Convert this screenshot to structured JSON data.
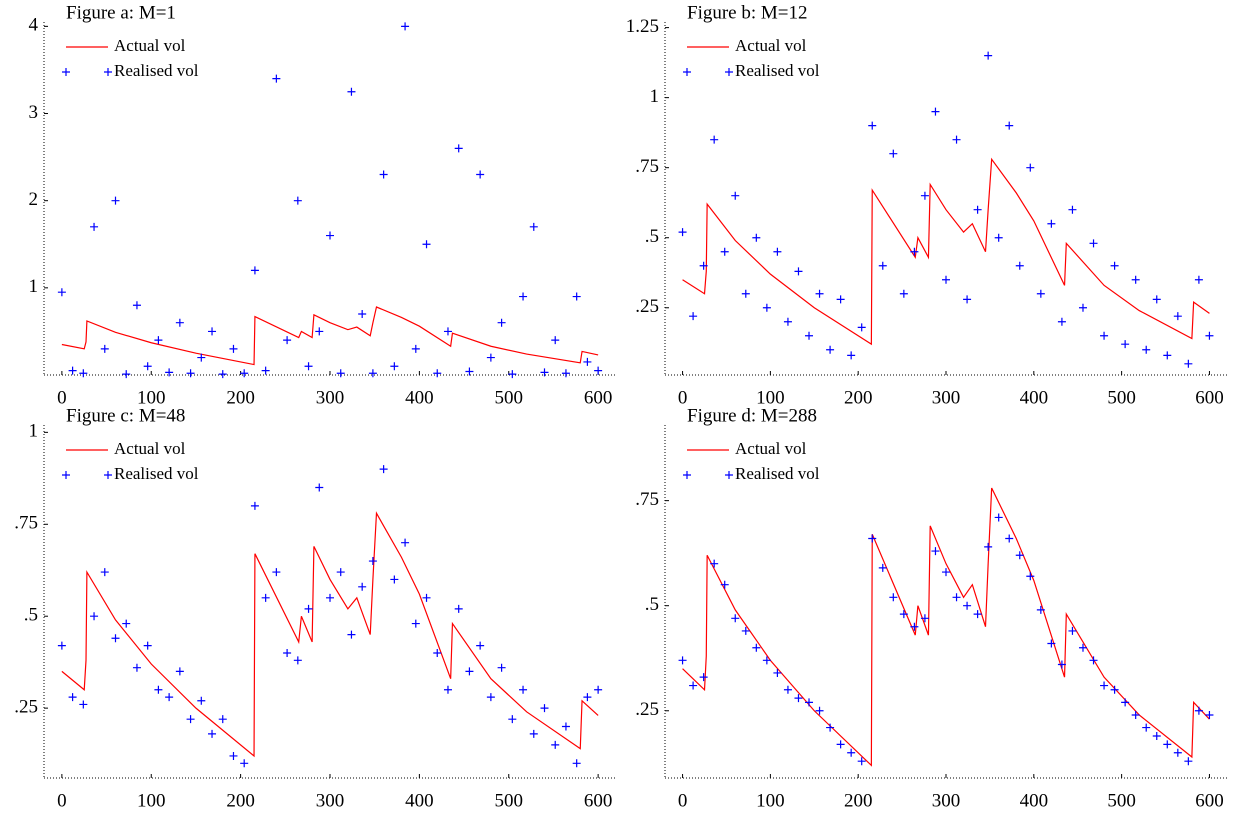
{
  "chart_data": [
    {
      "type": "scatter",
      "title": "Figure a: M=1",
      "xlim": [
        -20,
        620
      ],
      "ylim": [
        0,
        4.05
      ],
      "xticks": [
        0,
        100,
        200,
        300,
        400,
        500,
        600
      ],
      "yticks": [
        1,
        2,
        3,
        4
      ],
      "series": [
        {
          "name": "Actual vol",
          "color": "#ff0000",
          "style": "line",
          "x": [
            0,
            25,
            27,
            28,
            60,
            100,
            150,
            215,
            216,
            265,
            268,
            280,
            282,
            300,
            320,
            330,
            345,
            348,
            352,
            380,
            400,
            435,
            437,
            480,
            520,
            580,
            582,
            600
          ],
          "values": [
            0.35,
            0.3,
            0.38,
            0.62,
            0.49,
            0.37,
            0.25,
            0.12,
            0.67,
            0.43,
            0.5,
            0.43,
            0.69,
            0.6,
            0.52,
            0.55,
            0.45,
            0.6,
            0.78,
            0.66,
            0.56,
            0.33,
            0.48,
            0.33,
            0.24,
            0.14,
            0.27,
            0.23
          ]
        },
        {
          "name": "Realised vol",
          "color": "#0000ff",
          "style": "marker",
          "x": [
            0,
            12,
            24,
            36,
            48,
            60,
            72,
            84,
            96,
            108,
            120,
            132,
            144,
            156,
            168,
            180,
            192,
            204,
            216,
            228,
            240,
            252,
            264,
            276,
            288,
            300,
            312,
            324,
            336,
            348,
            360,
            372,
            384,
            396,
            408,
            420,
            432,
            444,
            456,
            468,
            480,
            492,
            504,
            516,
            528,
            540,
            552,
            564,
            576,
            588,
            600
          ],
          "values": [
            0.95,
            0.05,
            0.02,
            1.7,
            0.3,
            2.0,
            0.01,
            0.8,
            0.1,
            0.4,
            0.03,
            0.6,
            0.02,
            0.2,
            0.5,
            0.01,
            0.3,
            0.02,
            1.2,
            0.05,
            3.4,
            0.4,
            2.0,
            0.1,
            0.5,
            1.6,
            0.02,
            3.25,
            0.7,
            0.02,
            2.3,
            0.1,
            4.0,
            0.3,
            1.5,
            0.02,
            0.5,
            2.6,
            0.04,
            2.3,
            0.2,
            0.6,
            0.01,
            0.9,
            1.7,
            0.03,
            0.4,
            0.02,
            0.9,
            0.15,
            0.05
          ]
        }
      ]
    },
    {
      "type": "scatter",
      "title": "Figure b: M=12",
      "xlim": [
        -20,
        620
      ],
      "ylim": [
        0.01,
        1.27
      ],
      "xticks": [
        0,
        100,
        200,
        300,
        400,
        500,
        600
      ],
      "yticks": [
        {
          "value": 0.25,
          "label": ".25"
        },
        {
          "value": 0.5,
          "label": ".5"
        },
        {
          "value": 0.75,
          "label": ".75"
        },
        1,
        1.25
      ],
      "series": [
        {
          "name": "Actual vol",
          "color": "#ff0000",
          "style": "line",
          "x": [
            0,
            25,
            27,
            28,
            60,
            100,
            150,
            215,
            216,
            265,
            268,
            280,
            282,
            300,
            320,
            330,
            345,
            348,
            352,
            380,
            400,
            435,
            437,
            480,
            520,
            580,
            582,
            600
          ],
          "values": [
            0.35,
            0.3,
            0.38,
            0.62,
            0.49,
            0.37,
            0.25,
            0.12,
            0.67,
            0.43,
            0.5,
            0.43,
            0.69,
            0.6,
            0.52,
            0.55,
            0.45,
            0.6,
            0.78,
            0.66,
            0.56,
            0.33,
            0.48,
            0.33,
            0.24,
            0.14,
            0.27,
            0.23
          ]
        },
        {
          "name": "Realised vol",
          "color": "#0000ff",
          "style": "marker",
          "x": [
            0,
            12,
            24,
            36,
            48,
            60,
            72,
            84,
            96,
            108,
            120,
            132,
            144,
            156,
            168,
            180,
            192,
            204,
            216,
            228,
            240,
            252,
            264,
            276,
            288,
            300,
            312,
            324,
            336,
            348,
            360,
            372,
            384,
            396,
            408,
            420,
            432,
            444,
            456,
            468,
            480,
            492,
            504,
            516,
            528,
            540,
            552,
            564,
            576,
            588,
            600
          ],
          "values": [
            0.52,
            0.22,
            0.4,
            0.85,
            0.45,
            0.65,
            0.3,
            0.5,
            0.25,
            0.45,
            0.2,
            0.38,
            0.15,
            0.3,
            0.1,
            0.28,
            0.08,
            0.18,
            0.9,
            0.4,
            0.8,
            0.3,
            0.45,
            0.65,
            0.95,
            0.35,
            0.85,
            0.28,
            0.6,
            1.15,
            0.5,
            0.9,
            0.4,
            0.75,
            0.3,
            0.55,
            0.2,
            0.6,
            0.25,
            0.48,
            0.15,
            0.4,
            0.12,
            0.35,
            0.1,
            0.28,
            0.08,
            0.22,
            0.05,
            0.35,
            0.15
          ]
        }
      ]
    },
    {
      "type": "scatter",
      "title": "Figure c: M=48",
      "xlim": [
        -20,
        620
      ],
      "ylim": [
        0.06,
        1.02
      ],
      "xticks": [
        0,
        100,
        200,
        300,
        400,
        500,
        600
      ],
      "yticks": [
        {
          "value": 0.25,
          "label": ".25"
        },
        {
          "value": 0.5,
          "label": ".5"
        },
        {
          "value": 0.75,
          "label": ".75"
        },
        1
      ],
      "series": [
        {
          "name": "Actual vol",
          "color": "#ff0000",
          "style": "line",
          "x": [
            0,
            25,
            27,
            28,
            60,
            100,
            150,
            215,
            216,
            265,
            268,
            280,
            282,
            300,
            320,
            330,
            345,
            348,
            352,
            380,
            400,
            435,
            437,
            480,
            520,
            580,
            582,
            600
          ],
          "values": [
            0.35,
            0.3,
            0.38,
            0.62,
            0.49,
            0.37,
            0.25,
            0.12,
            0.67,
            0.43,
            0.5,
            0.43,
            0.69,
            0.6,
            0.52,
            0.55,
            0.45,
            0.6,
            0.78,
            0.66,
            0.56,
            0.33,
            0.48,
            0.33,
            0.24,
            0.14,
            0.27,
            0.23
          ]
        },
        {
          "name": "Realised vol",
          "color": "#0000ff",
          "style": "marker",
          "x": [
            0,
            12,
            24,
            36,
            48,
            60,
            72,
            84,
            96,
            108,
            120,
            132,
            144,
            156,
            168,
            180,
            192,
            204,
            216,
            228,
            240,
            252,
            264,
            276,
            288,
            300,
            312,
            324,
            336,
            348,
            360,
            372,
            384,
            396,
            408,
            420,
            432,
            444,
            456,
            468,
            480,
            492,
            504,
            516,
            528,
            540,
            552,
            564,
            576,
            588,
            600
          ],
          "values": [
            0.42,
            0.28,
            0.26,
            0.5,
            0.62,
            0.44,
            0.48,
            0.36,
            0.42,
            0.3,
            0.28,
            0.35,
            0.22,
            0.27,
            0.18,
            0.22,
            0.12,
            0.1,
            0.8,
            0.55,
            0.62,
            0.4,
            0.38,
            0.52,
            0.85,
            0.55,
            0.62,
            0.45,
            0.58,
            0.65,
            0.9,
            0.6,
            0.7,
            0.48,
            0.55,
            0.4,
            0.3,
            0.52,
            0.35,
            0.42,
            0.28,
            0.36,
            0.22,
            0.3,
            0.18,
            0.25,
            0.15,
            0.2,
            0.1,
            0.28,
            0.3
          ]
        }
      ]
    },
    {
      "type": "scatter",
      "title": "Figure d: M=288",
      "xlim": [
        -20,
        620
      ],
      "ylim": [
        0.09,
        0.93
      ],
      "xticks": [
        0,
        100,
        200,
        300,
        400,
        500,
        600
      ],
      "yticks": [
        {
          "value": 0.25,
          "label": ".25"
        },
        {
          "value": 0.5,
          "label": ".5"
        },
        {
          "value": 0.75,
          "label": ".75"
        }
      ],
      "series": [
        {
          "name": "Actual vol",
          "color": "#ff0000",
          "style": "line",
          "x": [
            0,
            25,
            27,
            28,
            60,
            100,
            150,
            215,
            216,
            265,
            268,
            280,
            282,
            300,
            320,
            330,
            345,
            348,
            352,
            380,
            400,
            435,
            437,
            480,
            520,
            580,
            582,
            600
          ],
          "values": [
            0.35,
            0.3,
            0.38,
            0.62,
            0.49,
            0.37,
            0.25,
            0.12,
            0.67,
            0.43,
            0.5,
            0.43,
            0.69,
            0.6,
            0.52,
            0.55,
            0.45,
            0.6,
            0.78,
            0.66,
            0.56,
            0.33,
            0.48,
            0.33,
            0.24,
            0.14,
            0.27,
            0.23
          ]
        },
        {
          "name": "Realised vol",
          "color": "#0000ff",
          "style": "marker",
          "x": [
            0,
            12,
            24,
            36,
            48,
            60,
            72,
            84,
            96,
            108,
            120,
            132,
            144,
            156,
            168,
            180,
            192,
            204,
            216,
            228,
            240,
            252,
            264,
            276,
            288,
            300,
            312,
            324,
            336,
            348,
            360,
            372,
            384,
            396,
            408,
            420,
            432,
            444,
            456,
            468,
            480,
            492,
            504,
            516,
            528,
            540,
            552,
            564,
            576,
            588,
            600
          ],
          "values": [
            0.37,
            0.31,
            0.33,
            0.6,
            0.55,
            0.47,
            0.44,
            0.4,
            0.37,
            0.34,
            0.3,
            0.28,
            0.27,
            0.25,
            0.21,
            0.17,
            0.15,
            0.13,
            0.66,
            0.59,
            0.52,
            0.48,
            0.45,
            0.47,
            0.63,
            0.58,
            0.52,
            0.5,
            0.48,
            0.64,
            0.71,
            0.66,
            0.62,
            0.57,
            0.49,
            0.41,
            0.36,
            0.44,
            0.4,
            0.37,
            0.31,
            0.3,
            0.27,
            0.24,
            0.21,
            0.19,
            0.17,
            0.15,
            0.13,
            0.25,
            0.24
          ]
        }
      ]
    }
  ]
}
